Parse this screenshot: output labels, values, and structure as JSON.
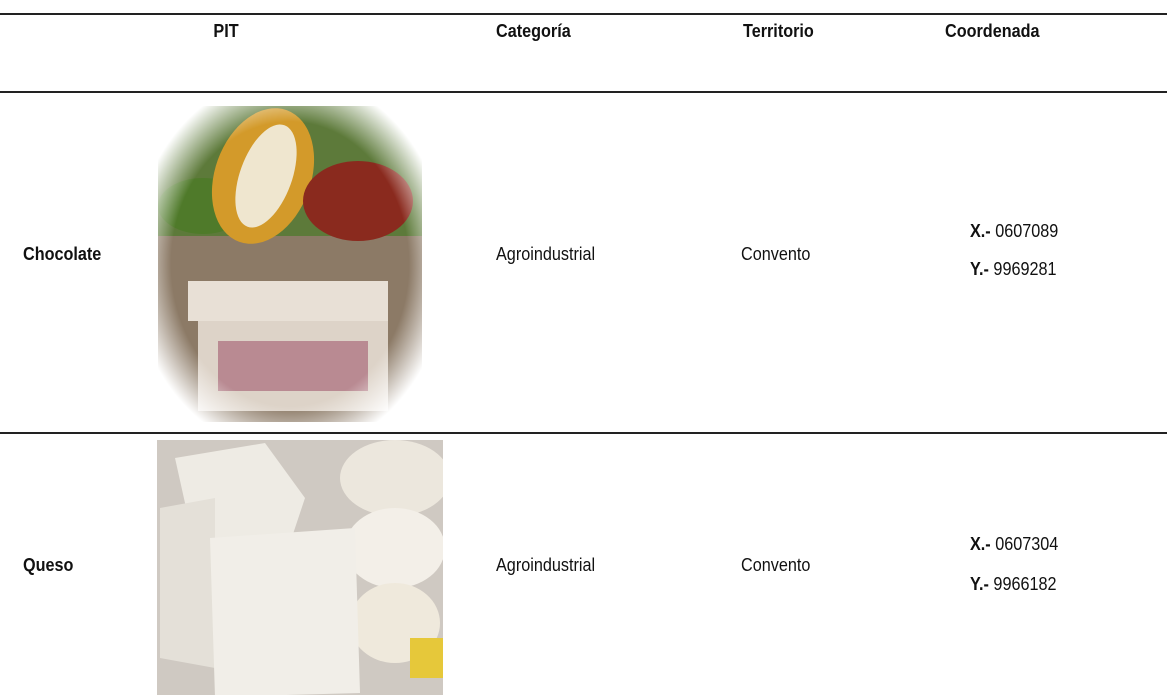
{
  "table": {
    "headers": [
      "PIT",
      "Categoría",
      "Territorio",
      "Coordenada"
    ],
    "rows": [
      {
        "pit": "Chocolate",
        "category": "Agroindustrial",
        "territory": "Convento",
        "coordinate": {
          "x_label": "X.-",
          "x": "0607089",
          "y_label": "Y.-",
          "y": "9969281"
        }
      },
      {
        "pit": "Queso",
        "category": "Agroindustrial",
        "territory": "Convento",
        "coordinate": {
          "x_label": "X.-",
          "x": "0607304",
          "y_label": "Y.-",
          "y": "9966182"
        }
      }
    ]
  }
}
